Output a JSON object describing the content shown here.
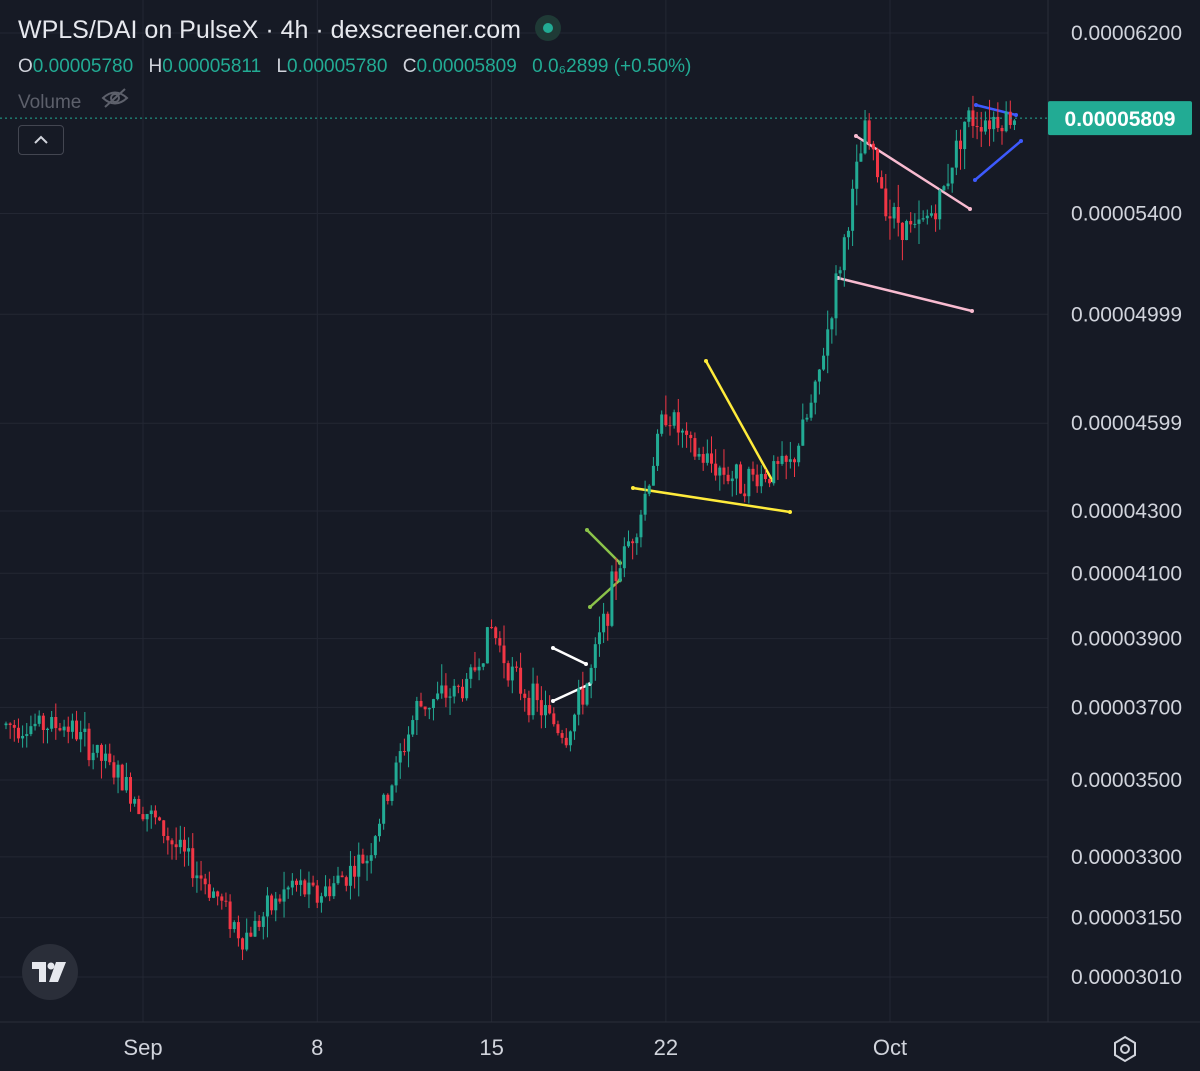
{
  "header": {
    "title": "WPLS/DAI on PulseX · 4h · dexscreener.com",
    "ohlc": [
      {
        "key": "O",
        "value": "0.00005780"
      },
      {
        "key": "H",
        "value": "0.00005811"
      },
      {
        "key": "L",
        "value": "0.00005780"
      },
      {
        "key": "C",
        "value": "0.00005809"
      }
    ],
    "change": "0.0₆2899 (+0.50%)",
    "volume_label": "Volume"
  },
  "colors": {
    "background": "#161a25",
    "up": "#22ab94",
    "down": "#f23645",
    "grid": "#232733",
    "axis_text": "#d1d4dc",
    "price_tag": "#22ab94"
  },
  "icons": {
    "live": "live-status-dot",
    "volume_hidden": "eye-off-icon",
    "collapse": "chevron-up-icon",
    "logo": "tradingview-logo-icon",
    "settings": "gear-icon"
  },
  "chart_data": {
    "type": "candlestick",
    "title": "WPLS/DAI on PulseX · 4h · dexscreener.com",
    "y_ticks": [
      "0.00006200",
      "0.00005400",
      "0.00004999",
      "0.00004599",
      "0.00004300",
      "0.00004100",
      "0.00003900",
      "0.00003700",
      "0.00003500",
      "0.00003300",
      "0.00003150",
      "0.00003010"
    ],
    "y_scale": "log",
    "ylim": [
      2.92e-05,
      6.4e-05
    ],
    "x_ticks": [
      "Sep",
      "8",
      "15",
      "22",
      "Oct"
    ],
    "last_price": "0.00005809",
    "grid": true,
    "close_path": [
      [
        "Aug 29",
        3.65e-05
      ],
      [
        "Aug 31",
        3.51e-05
      ],
      [
        "Sep 2",
        3.35e-05
      ],
      [
        "Sep 4",
        3.2e-05
      ],
      [
        "Sep 5",
        3.1e-05
      ],
      [
        "Sep 7",
        3.23e-05
      ],
      [
        "Sep 8",
        3.2e-05
      ],
      [
        "Sep 10",
        3.3e-05
      ],
      [
        "Sep 12",
        3.7e-05
      ],
      [
        "Sep 14",
        3.76e-05
      ],
      [
        "Sep 15",
        3.93e-05
      ],
      [
        "Sep 16",
        3.77e-05
      ],
      [
        "Sep 18",
        3.62e-05
      ],
      [
        "Sep 19",
        3.8e-05
      ],
      [
        "Sep 20",
        4.1e-05
      ],
      [
        "Sep 21",
        4.3e-05
      ],
      [
        "Sep 22",
        4.65e-05
      ],
      [
        "Sep 23",
        4.5e-05
      ],
      [
        "Sep 25",
        4.4e-05
      ],
      [
        "Sep 27",
        4.45e-05
      ],
      [
        "Sep 28",
        4.7e-05
      ],
      [
        "Sep 29",
        5.2e-05
      ],
      [
        "Sep 30",
        5.75e-05
      ],
      [
        "Oct 1",
        5.4e-05
      ],
      [
        "Oct 2",
        5.32e-05
      ],
      [
        "Oct 3",
        5.45e-05
      ],
      [
        "Oct 4",
        5.8e-05
      ],
      [
        "Oct 5",
        5.81e-05
      ]
    ]
  }
}
